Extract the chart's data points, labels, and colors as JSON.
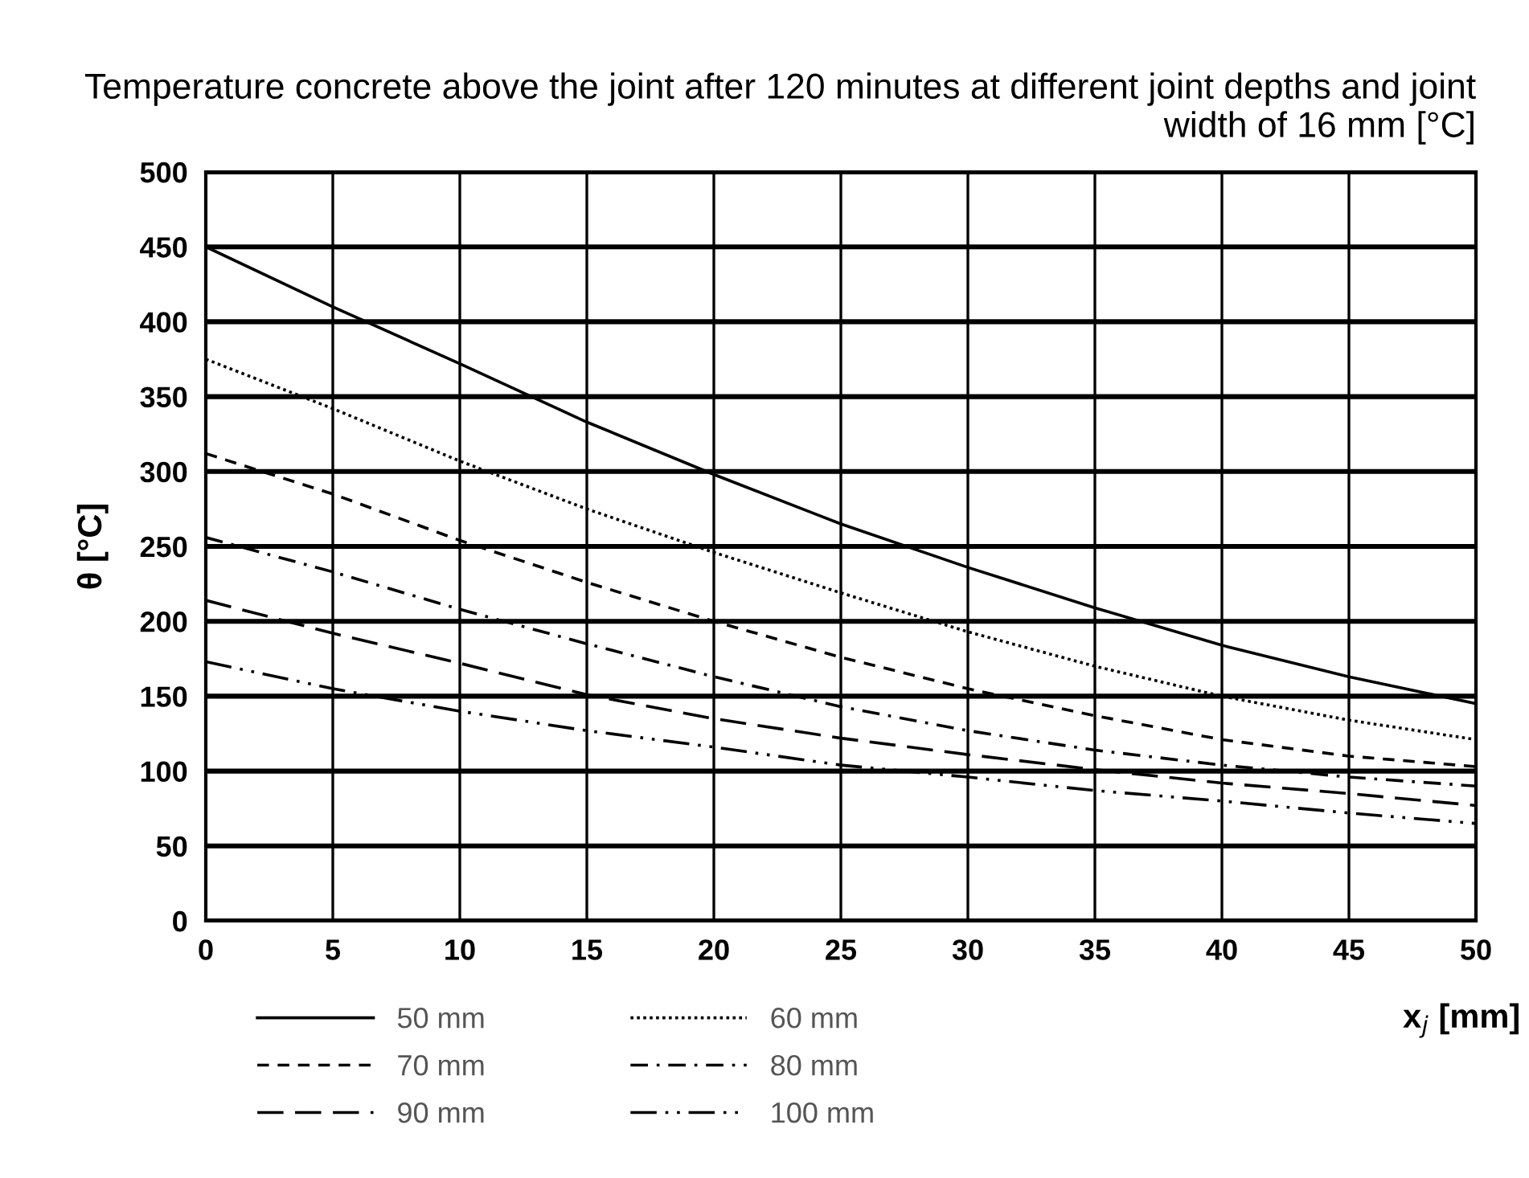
{
  "chart_data": {
    "type": "line",
    "title": "Temperature concrete above the joint after 120 minutes at different joint depths and joint width of 16 mm [°C]",
    "xlabel": "x$_{j}$ [mm]",
    "ylabel": "θ [°C]",
    "x": [
      0,
      5,
      10,
      15,
      20,
      25,
      30,
      35,
      40,
      45,
      50
    ],
    "series": [
      {
        "name": "50 mm",
        "color": "#000000",
        "line_style": "solid",
        "values": [
          450,
          410,
          372,
          333,
          298,
          265,
          236,
          209,
          184,
          163,
          145
        ]
      },
      {
        "name": "60 mm",
        "color": "#000000",
        "line_style": "dotted",
        "values": [
          375,
          342,
          307,
          275,
          246,
          219,
          193,
          170,
          150,
          134,
          121
        ]
      },
      {
        "name": "70 mm",
        "color": "#000000",
        "line_style": "dashed",
        "values": [
          312,
          285,
          254,
          226,
          200,
          176,
          155,
          137,
          121,
          110,
          103
        ]
      },
      {
        "name": "80 mm",
        "color": "#000000",
        "line_style": "dashdot",
        "values": [
          256,
          233,
          208,
          185,
          163,
          143,
          127,
          114,
          104,
          96,
          90
        ]
      },
      {
        "name": "90 mm",
        "color": "#000000",
        "line_style": "longdash",
        "values": [
          214,
          192,
          172,
          151,
          135,
          122,
          111,
          101,
          92,
          85,
          77
        ]
      },
      {
        "name": "100 mm",
        "color": "#000000",
        "line_style": "dashdotdot",
        "values": [
          173,
          155,
          140,
          127,
          116,
          104,
          96,
          87,
          80,
          72,
          65
        ]
      }
    ],
    "xlim": [
      0,
      50
    ],
    "xticks": [
      0,
      5,
      10,
      15,
      20,
      25,
      30,
      35,
      40,
      45,
      50
    ],
    "ylim": [
      0,
      500
    ],
    "yticks": [
      0,
      50,
      100,
      150,
      200,
      250,
      300,
      350,
      400,
      450,
      500
    ],
    "grid": true,
    "legend": "bottom",
    "marker": "none"
  }
}
